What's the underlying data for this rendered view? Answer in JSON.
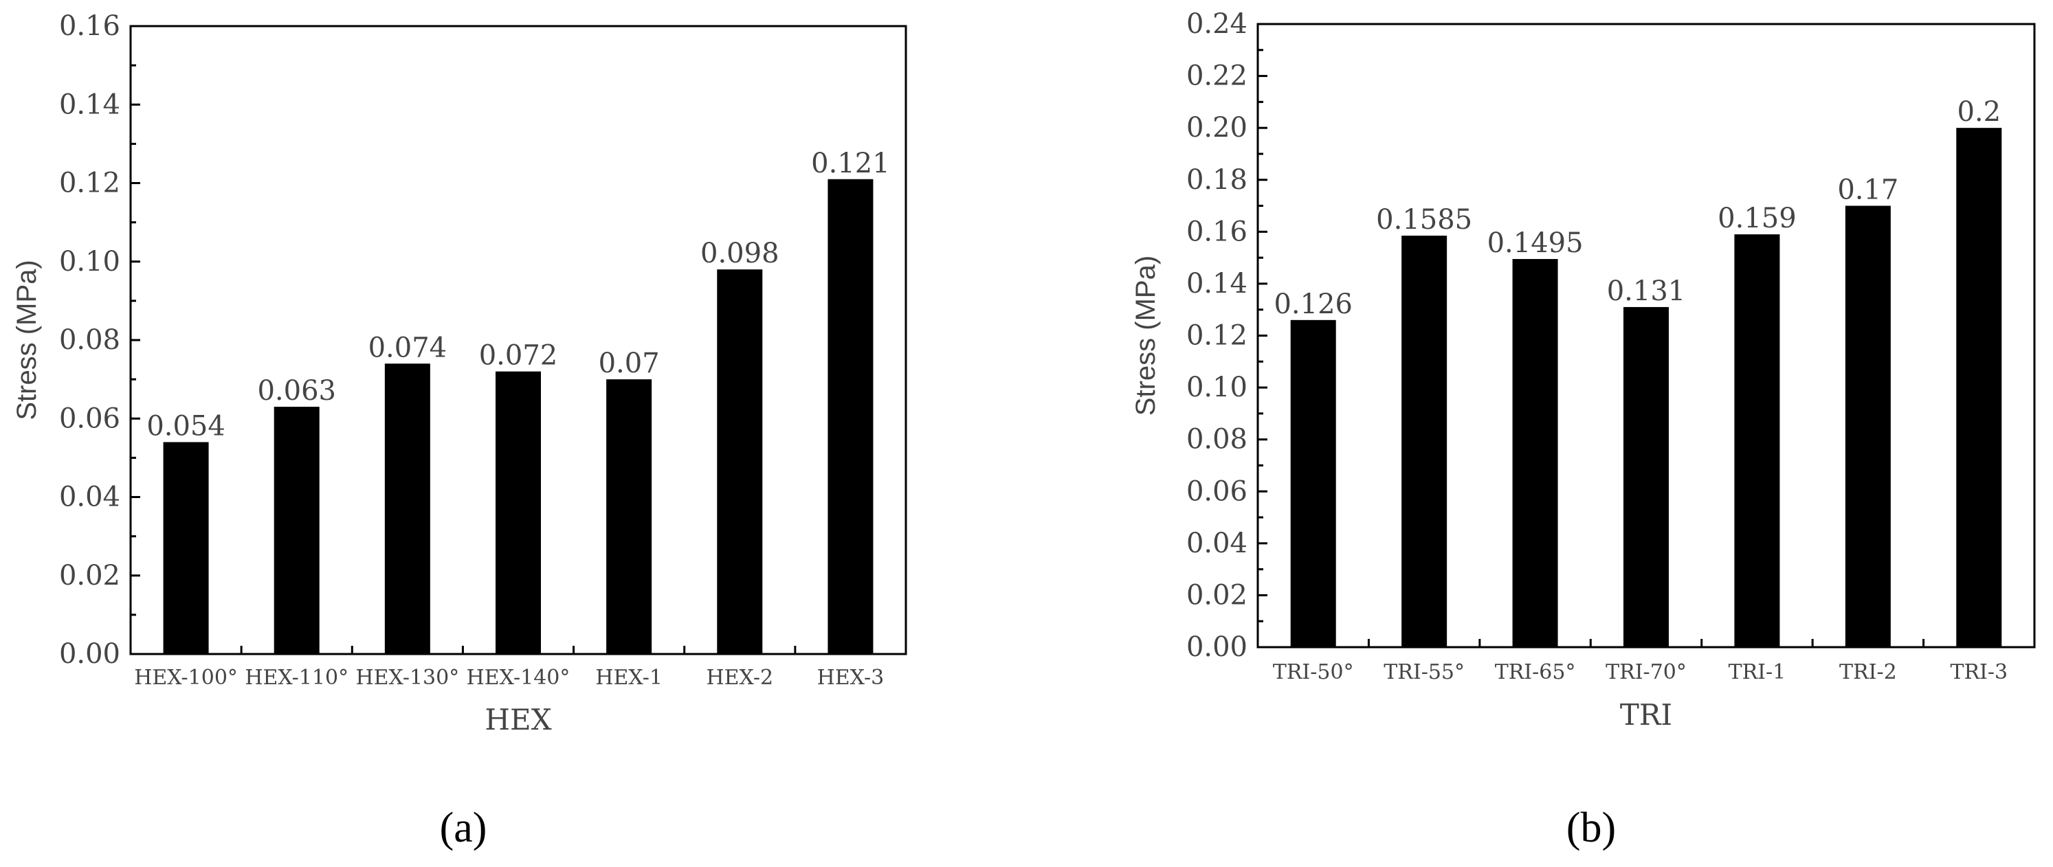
{
  "chart_data": [
    {
      "type": "bar",
      "panel_label": "(a)",
      "xlabel": "HEX",
      "ylabel": "Stress (MPa)",
      "ylim": [
        0,
        0.16
      ],
      "yticks": [
        "0.00",
        "0.02",
        "0.04",
        "0.06",
        "0.08",
        "0.10",
        "0.12",
        "0.14",
        "0.16"
      ],
      "categories": [
        "HEX-100°",
        "HEX-110°",
        "HEX-130°",
        "HEX-140°",
        "HEX-1",
        "HEX-2",
        "HEX-3"
      ],
      "values": [
        0.054,
        0.063,
        0.074,
        0.072,
        0.07,
        0.098,
        0.121
      ],
      "data_labels": [
        "0.054",
        "0.063",
        "0.074",
        "0.072",
        "0.07",
        "0.098",
        "0.121"
      ],
      "bar_color": "#000000",
      "grid": false
    },
    {
      "type": "bar",
      "panel_label": "(b)",
      "xlabel": "TRI",
      "ylabel": "Stress (MPa)",
      "ylim": [
        0,
        0.24
      ],
      "yticks": [
        "0.00",
        "0.02",
        "0.04",
        "0.06",
        "0.08",
        "0.10",
        "0.12",
        "0.14",
        "0.16",
        "0.18",
        "0.20",
        "0.22",
        "0.24"
      ],
      "categories": [
        "TRI-50°",
        "TRI-55°",
        "TRI-65°",
        "TRI-70°",
        "TRI-1",
        "TRI-2",
        "TRI-3"
      ],
      "values": [
        0.126,
        0.1585,
        0.1495,
        0.131,
        0.159,
        0.17,
        0.2
      ],
      "data_labels": [
        "0.126",
        "0.1585",
        "0.1495",
        "0.131",
        "0.159",
        "0.17",
        "0.2"
      ],
      "bar_color": "#000000",
      "grid": false
    }
  ]
}
